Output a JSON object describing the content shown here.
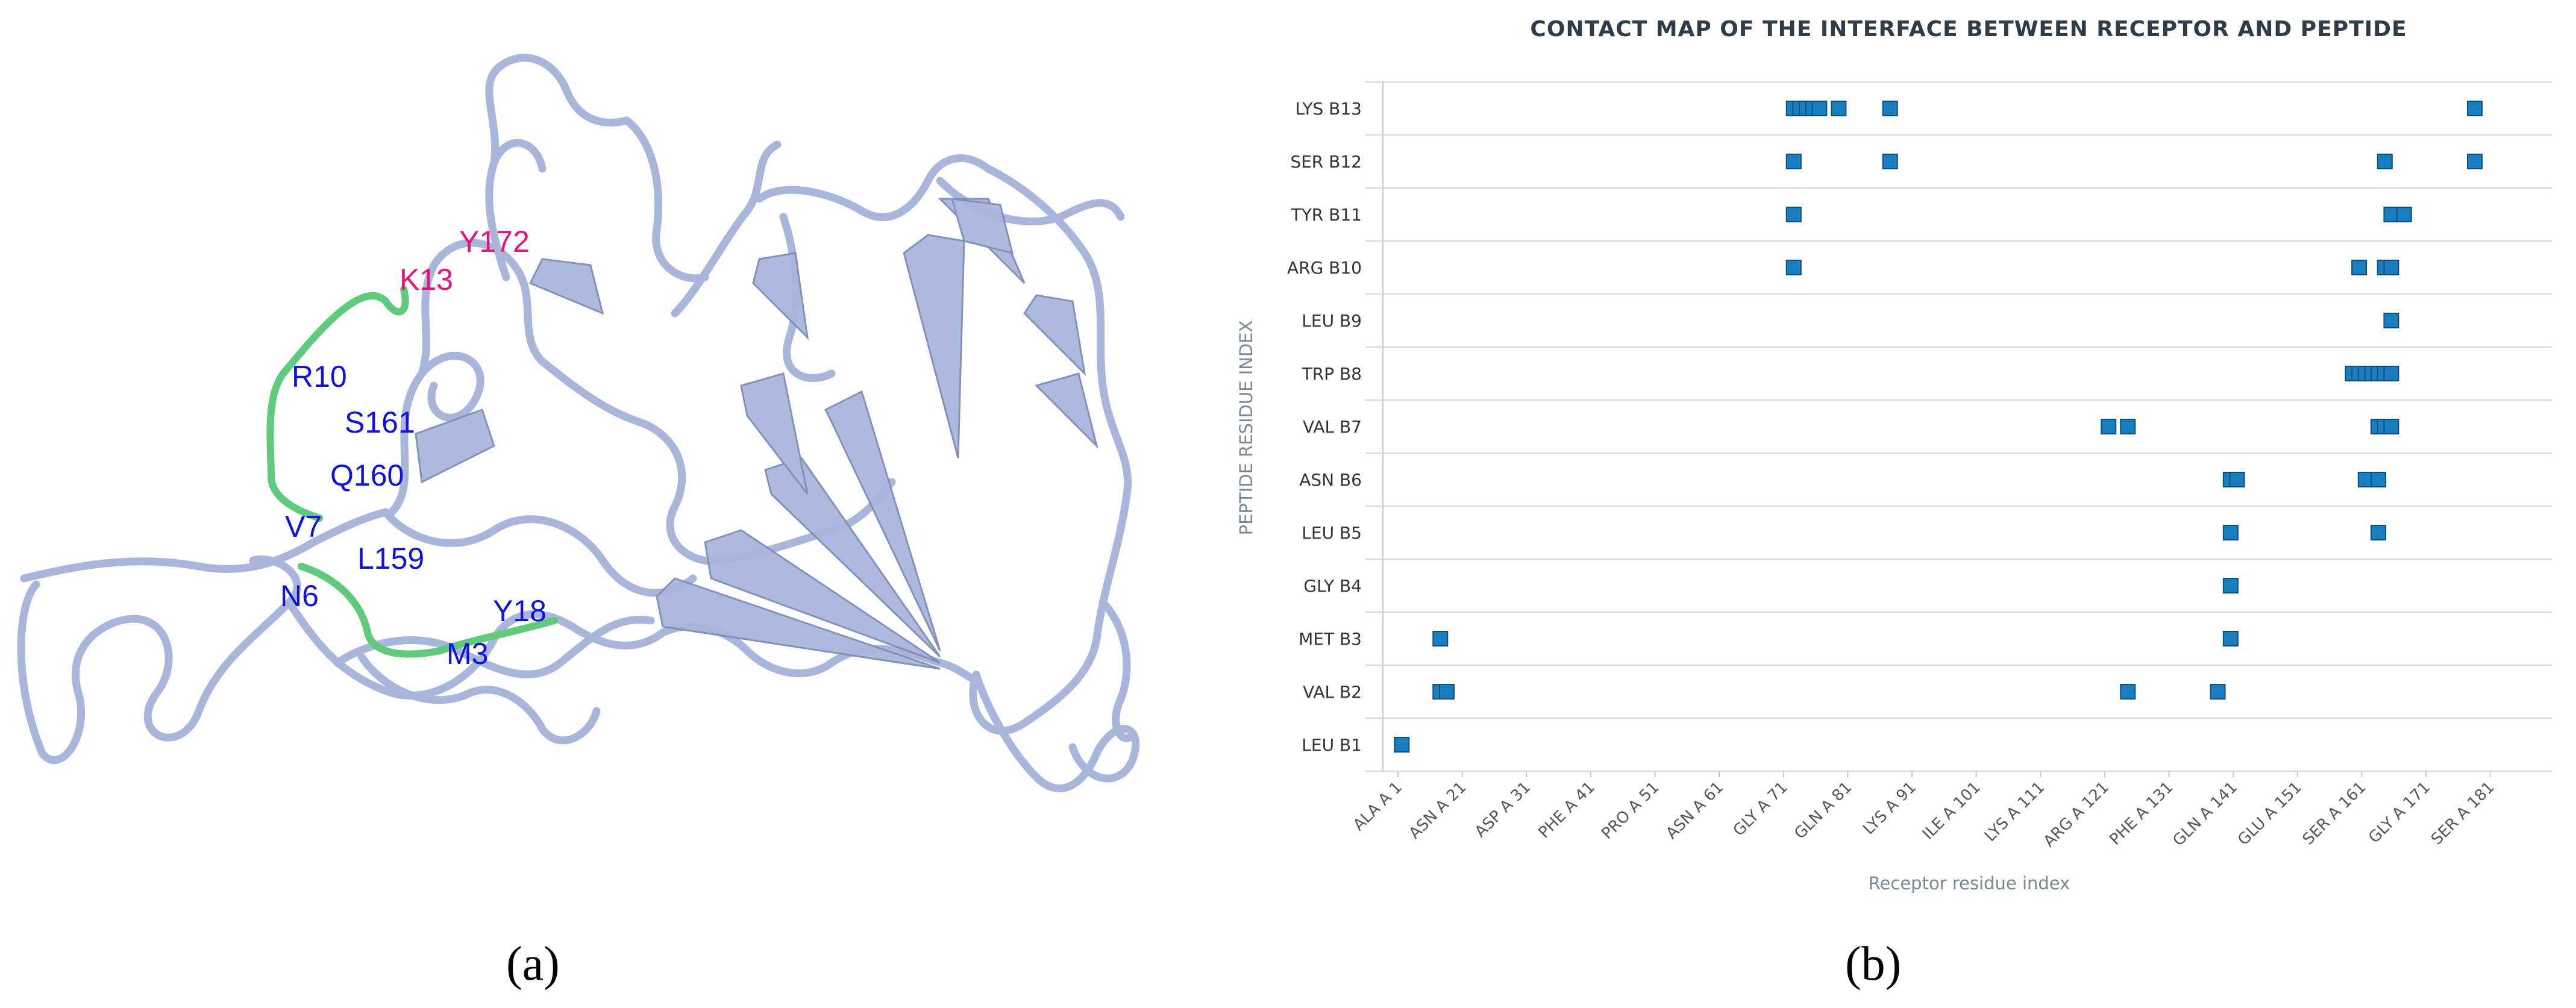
{
  "panels": {
    "a_label": "(a)",
    "b_label": "(b)"
  },
  "structure": {
    "labels": [
      {
        "text": "Y172",
        "color": "#e8127a"
      },
      {
        "text": "K13",
        "color": "#e8127a"
      },
      {
        "text": "R10",
        "color": "#1010e0"
      },
      {
        "text": "S161",
        "color": "#1010e0"
      },
      {
        "text": "Q160",
        "color": "#1010e0"
      },
      {
        "text": "V7",
        "color": "#1010e0"
      },
      {
        "text": "L159",
        "color": "#1010e0"
      },
      {
        "text": "N6",
        "color": "#1010e0"
      },
      {
        "text": "Y18",
        "color": "#1010e0"
      },
      {
        "text": "M3",
        "color": "#1010e0"
      }
    ],
    "colors": {
      "backbone": "#a9b6dc",
      "peptide": "#5fc97c"
    }
  },
  "chart_data": {
    "type": "scatter",
    "title": "CONTACT MAP OF THE INTERFACE BETWEEN RECEPTOR AND PEPTIDE",
    "xlabel": "Receptor residue index",
    "ylabel": "PEPTIDE RESIDUE INDEX",
    "xlim": [
      0,
      181
    ],
    "x_ticks": [
      {
        "value": 1,
        "label": "ALA A 1"
      },
      {
        "value": 11,
        "label": "ASN A 21"
      },
      {
        "value": 21,
        "label": "ASP A 31"
      },
      {
        "value": 31,
        "label": "PHE A 41"
      },
      {
        "value": 41,
        "label": "PRO A 51"
      },
      {
        "value": 51,
        "label": "ASN A 61"
      },
      {
        "value": 61,
        "label": "GLY A 71"
      },
      {
        "value": 71,
        "label": "GLN A 81"
      },
      {
        "value": 81,
        "label": "LYS A 91"
      },
      {
        "value": 91,
        "label": "ILE A 101"
      },
      {
        "value": 101,
        "label": "LYS A 111"
      },
      {
        "value": 111,
        "label": "ARG A 121"
      },
      {
        "value": 121,
        "label": "PHE A 131"
      },
      {
        "value": 131,
        "label": "GLN A 141"
      },
      {
        "value": 141,
        "label": "GLU A 151"
      },
      {
        "value": 151,
        "label": "SER A 161"
      },
      {
        "value": 161,
        "label": "GLY A 171"
      },
      {
        "value": 171,
        "label": "SER A 181"
      }
    ],
    "y_categories": [
      "LEU B1",
      "VAL B2",
      "MET B3",
      "GLY B4",
      "LEU B5",
      "ASN B6",
      "VAL B7",
      "TRP B8",
      "LEU B9",
      "ARG B10",
      "TYR B11",
      "SER B12",
      "LYS B13"
    ],
    "marker_color": "#1a7fc1",
    "points": [
      {
        "x": 2,
        "y": "LEU B1"
      },
      {
        "x": 8,
        "y": "VAL B2"
      },
      {
        "x": 9,
        "y": "VAL B2"
      },
      {
        "x": 115,
        "y": "VAL B2"
      },
      {
        "x": 129,
        "y": "VAL B2"
      },
      {
        "x": 8,
        "y": "MET B3"
      },
      {
        "x": 131,
        "y": "MET B3"
      },
      {
        "x": 131,
        "y": "GLY B4"
      },
      {
        "x": 131,
        "y": "LEU B5"
      },
      {
        "x": 154,
        "y": "LEU B5"
      },
      {
        "x": 131,
        "y": "ASN B6"
      },
      {
        "x": 132,
        "y": "ASN B6"
      },
      {
        "x": 152,
        "y": "ASN B6"
      },
      {
        "x": 154,
        "y": "ASN B6"
      },
      {
        "x": 112,
        "y": "VAL B7"
      },
      {
        "x": 115,
        "y": "VAL B7"
      },
      {
        "x": 154,
        "y": "VAL B7"
      },
      {
        "x": 155,
        "y": "VAL B7"
      },
      {
        "x": 156,
        "y": "VAL B7"
      },
      {
        "x": 150,
        "y": "TRP B8"
      },
      {
        "x": 151,
        "y": "TRP B8"
      },
      {
        "x": 152,
        "y": "TRP B8"
      },
      {
        "x": 153,
        "y": "TRP B8"
      },
      {
        "x": 154,
        "y": "TRP B8"
      },
      {
        "x": 155,
        "y": "TRP B8"
      },
      {
        "x": 156,
        "y": "TRP B8"
      },
      {
        "x": 156,
        "y": "LEU B9"
      },
      {
        "x": 151,
        "y": "ARG B10"
      },
      {
        "x": 155,
        "y": "ARG B10"
      },
      {
        "x": 156,
        "y": "ARG B10"
      },
      {
        "x": 63,
        "y": "ARG B10"
      },
      {
        "x": 63,
        "y": "TYR B11"
      },
      {
        "x": 156,
        "y": "TYR B11"
      },
      {
        "x": 158,
        "y": "TYR B11"
      },
      {
        "x": 63,
        "y": "SER B12"
      },
      {
        "x": 78,
        "y": "SER B12"
      },
      {
        "x": 155,
        "y": "SER B12"
      },
      {
        "x": 169,
        "y": "SER B12"
      },
      {
        "x": 63,
        "y": "LYS B13"
      },
      {
        "x": 64,
        "y": "LYS B13"
      },
      {
        "x": 65,
        "y": "LYS B13"
      },
      {
        "x": 66,
        "y": "LYS B13"
      },
      {
        "x": 67,
        "y": "LYS B13"
      },
      {
        "x": 70,
        "y": "LYS B13"
      },
      {
        "x": 78,
        "y": "LYS B13"
      },
      {
        "x": 169,
        "y": "LYS B13"
      }
    ]
  }
}
